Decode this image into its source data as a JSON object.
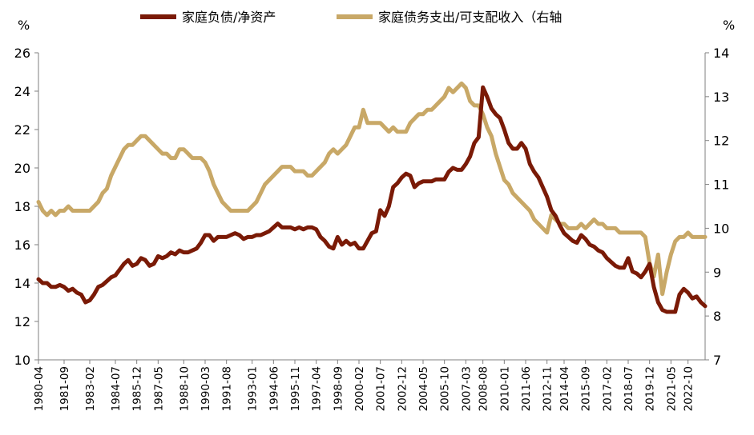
{
  "chart_data": {
    "type": "line",
    "x": [
      "1980-04",
      "1980-07",
      "1980-10",
      "1981-01",
      "1981-04",
      "1981-07",
      "1981-09",
      "1982-01",
      "1982-04",
      "1982-07",
      "1982-10",
      "1983-01",
      "1983-02",
      "1983-04",
      "1983-07",
      "1983-10",
      "1984-01",
      "1984-04",
      "1984-07",
      "1984-10",
      "1985-01",
      "1985-04",
      "1985-07",
      "1985-12",
      "1986-04",
      "1986-07",
      "1986-10",
      "1987-01",
      "1987-05",
      "1987-07",
      "1987-10",
      "1988-01",
      "1988-04",
      "1988-07",
      "1988-10",
      "1989-01",
      "1989-04",
      "1989-07",
      "1989-10",
      "1990-03",
      "1990-07",
      "1990-10",
      "1991-01",
      "1991-04",
      "1991-08",
      "1991-10",
      "1992-01",
      "1992-04",
      "1992-07",
      "1992-10",
      "1993-01",
      "1993-04",
      "1993-07",
      "1993-10",
      "1994-01",
      "1994-06",
      "1994-10",
      "1995-01",
      "1995-04",
      "1995-07",
      "1995-11",
      "1996-04",
      "1996-07",
      "1996-10",
      "1997-01",
      "1997-04",
      "1997-07",
      "1997-10",
      "1998-01",
      "1998-04",
      "1998-09",
      "1999-01",
      "1999-04",
      "1999-07",
      "1999-10",
      "2000-02",
      "2000-07",
      "2000-10",
      "2001-01",
      "2001-04",
      "2001-07",
      "2001-10",
      "2002-01",
      "2002-04",
      "2002-07",
      "2002-12",
      "2003-04",
      "2003-07",
      "2003-10",
      "2004-01",
      "2004-05",
      "2004-10",
      "2005-01",
      "2005-04",
      "2005-07",
      "2005-10",
      "2006-01",
      "2006-04",
      "2006-07",
      "2006-10",
      "2007-03",
      "2007-07",
      "2007-10",
      "2008-01",
      "2008-08",
      "2008-10",
      "2009-01",
      "2009-04",
      "2009-07",
      "2010-01",
      "2010-04",
      "2010-07",
      "2010-10",
      "2011-01",
      "2011-06",
      "2011-10",
      "2012-01",
      "2012-04",
      "2012-07",
      "2012-11",
      "2013-04",
      "2013-07",
      "2013-10",
      "2014-04",
      "2014-07",
      "2014-10",
      "2015-01",
      "2015-04",
      "2015-09",
      "2016-01",
      "2016-04",
      "2016-07",
      "2016-10",
      "2017-02",
      "2017-07",
      "2017-10",
      "2018-01",
      "2018-04",
      "2018-07",
      "2018-10",
      "2019-01",
      "2019-04",
      "2019-07",
      "2019-12",
      "2020-04",
      "2020-07",
      "2020-10",
      "2021-01",
      "2021-05",
      "2021-10",
      "2022-01",
      "2022-04",
      "2022-10",
      "2023-01",
      "2023-04",
      "2023-07",
      "2023-10"
    ],
    "x_tick_labels": [
      "1980-04",
      "1981-09",
      "1983-02",
      "1984-07",
      "1985-12",
      "1987-05",
      "1988-10",
      "1990-03",
      "1991-08",
      "1993-01",
      "1994-06",
      "1995-11",
      "1997-04",
      "1998-09",
      "2000-02",
      "2001-07",
      "2002-12",
      "2004-05",
      "2005-10",
      "2007-03",
      "2008-08",
      "2010-01",
      "2011-06",
      "2012-11",
      "2014-04",
      "2015-09",
      "2017-02",
      "2018-07",
      "2019-12",
      "2021-05",
      "2022-10"
    ],
    "series": [
      {
        "name": "家庭负债/净资产",
        "axis": "left",
        "color": "#7a1a06",
        "values": [
          14.2,
          14.0,
          14.0,
          13.8,
          13.8,
          13.9,
          13.8,
          13.6,
          13.7,
          13.5,
          13.4,
          13.0,
          13.1,
          13.4,
          13.8,
          13.9,
          14.1,
          14.3,
          14.4,
          14.7,
          15.0,
          15.2,
          14.9,
          15.0,
          15.3,
          15.2,
          14.9,
          15.0,
          15.4,
          15.3,
          15.4,
          15.6,
          15.5,
          15.7,
          15.6,
          15.6,
          15.7,
          15.8,
          16.1,
          16.5,
          16.5,
          16.2,
          16.4,
          16.4,
          16.4,
          16.5,
          16.6,
          16.5,
          16.3,
          16.4,
          16.4,
          16.5,
          16.5,
          16.6,
          16.7,
          16.9,
          17.1,
          16.9,
          16.9,
          16.9,
          16.8,
          16.9,
          16.8,
          16.9,
          16.9,
          16.8,
          16.4,
          16.2,
          15.9,
          15.8,
          16.4,
          16.0,
          16.2,
          16.0,
          16.1,
          15.8,
          15.8,
          16.2,
          16.6,
          16.7,
          17.8,
          17.5,
          18.0,
          19.0,
          19.2,
          19.5,
          19.7,
          19.6,
          19.0,
          19.2,
          19.3,
          19.3,
          19.3,
          19.4,
          19.4,
          19.4,
          19.8,
          20.0,
          19.9,
          19.9,
          20.2,
          20.6,
          21.3,
          21.6,
          24.2,
          23.7,
          23.1,
          22.8,
          22.6,
          22.0,
          21.3,
          21.0,
          21.0,
          21.3,
          21.0,
          20.2,
          19.8,
          19.5,
          19.0,
          18.5,
          17.8,
          17.5,
          17.0,
          16.6,
          16.4,
          16.2,
          16.1,
          16.5,
          16.3,
          16.0,
          15.9,
          15.7,
          15.6,
          15.3,
          15.1,
          14.9,
          14.8,
          14.8,
          15.3,
          14.6,
          14.5,
          14.3,
          14.6,
          15.0,
          13.8,
          13.0,
          12.6,
          12.5,
          12.5,
          12.5,
          13.4,
          13.7,
          13.5,
          13.2,
          13.3,
          13.0,
          12.8
        ]
      },
      {
        "name": "家庭债务支出/可支配收入（右轴",
        "axis": "right",
        "color": "#c8a867",
        "values": [
          10.6,
          10.4,
          10.3,
          10.4,
          10.3,
          10.4,
          10.4,
          10.5,
          10.4,
          10.4,
          10.4,
          10.4,
          10.4,
          10.5,
          10.6,
          10.8,
          10.9,
          11.2,
          11.4,
          11.6,
          11.8,
          11.9,
          11.9,
          12.0,
          12.1,
          12.1,
          12.0,
          11.9,
          11.8,
          11.7,
          11.7,
          11.6,
          11.6,
          11.8,
          11.8,
          11.7,
          11.6,
          11.6,
          11.6,
          11.5,
          11.3,
          11.0,
          10.8,
          10.6,
          10.5,
          10.4,
          10.4,
          10.4,
          10.4,
          10.4,
          10.5,
          10.6,
          10.8,
          11.0,
          11.1,
          11.2,
          11.3,
          11.4,
          11.4,
          11.4,
          11.3,
          11.3,
          11.3,
          11.2,
          11.2,
          11.3,
          11.4,
          11.5,
          11.7,
          11.8,
          11.7,
          11.8,
          11.9,
          12.1,
          12.3,
          12.3,
          12.7,
          12.4,
          12.4,
          12.4,
          12.4,
          12.3,
          12.2,
          12.3,
          12.2,
          12.2,
          12.2,
          12.4,
          12.5,
          12.6,
          12.6,
          12.7,
          12.7,
          12.8,
          12.9,
          13.0,
          13.2,
          13.1,
          13.2,
          13.3,
          13.2,
          12.9,
          12.8,
          12.8,
          12.6,
          12.3,
          12.1,
          11.7,
          11.4,
          11.1,
          11.0,
          10.8,
          10.7,
          10.6,
          10.5,
          10.4,
          10.2,
          10.1,
          10.0,
          9.9,
          10.3,
          10.2,
          10.1,
          10.1,
          10.0,
          10.0,
          10.0,
          10.1,
          10.0,
          10.1,
          10.2,
          10.1,
          10.1,
          10.0,
          10.0,
          10.0,
          9.9,
          9.9,
          9.9,
          9.9,
          9.9,
          9.9,
          9.8,
          9.2,
          8.9,
          9.4,
          8.5,
          9.0,
          9.4,
          9.7,
          9.8,
          9.8,
          9.9,
          9.8,
          9.8,
          9.8,
          9.8
        ]
      }
    ],
    "left_axis": {
      "unit": "%",
      "ylim": [
        10,
        26
      ],
      "ticks": [
        "10",
        "12",
        "14",
        "16",
        "18",
        "20",
        "22",
        "24",
        "26"
      ]
    },
    "right_axis": {
      "unit": "%",
      "ylim": [
        7,
        14
      ],
      "ticks": [
        "7",
        "8",
        "9",
        "10",
        "11",
        "12",
        "13",
        "14"
      ]
    },
    "grid": false,
    "legend_position": "top"
  }
}
